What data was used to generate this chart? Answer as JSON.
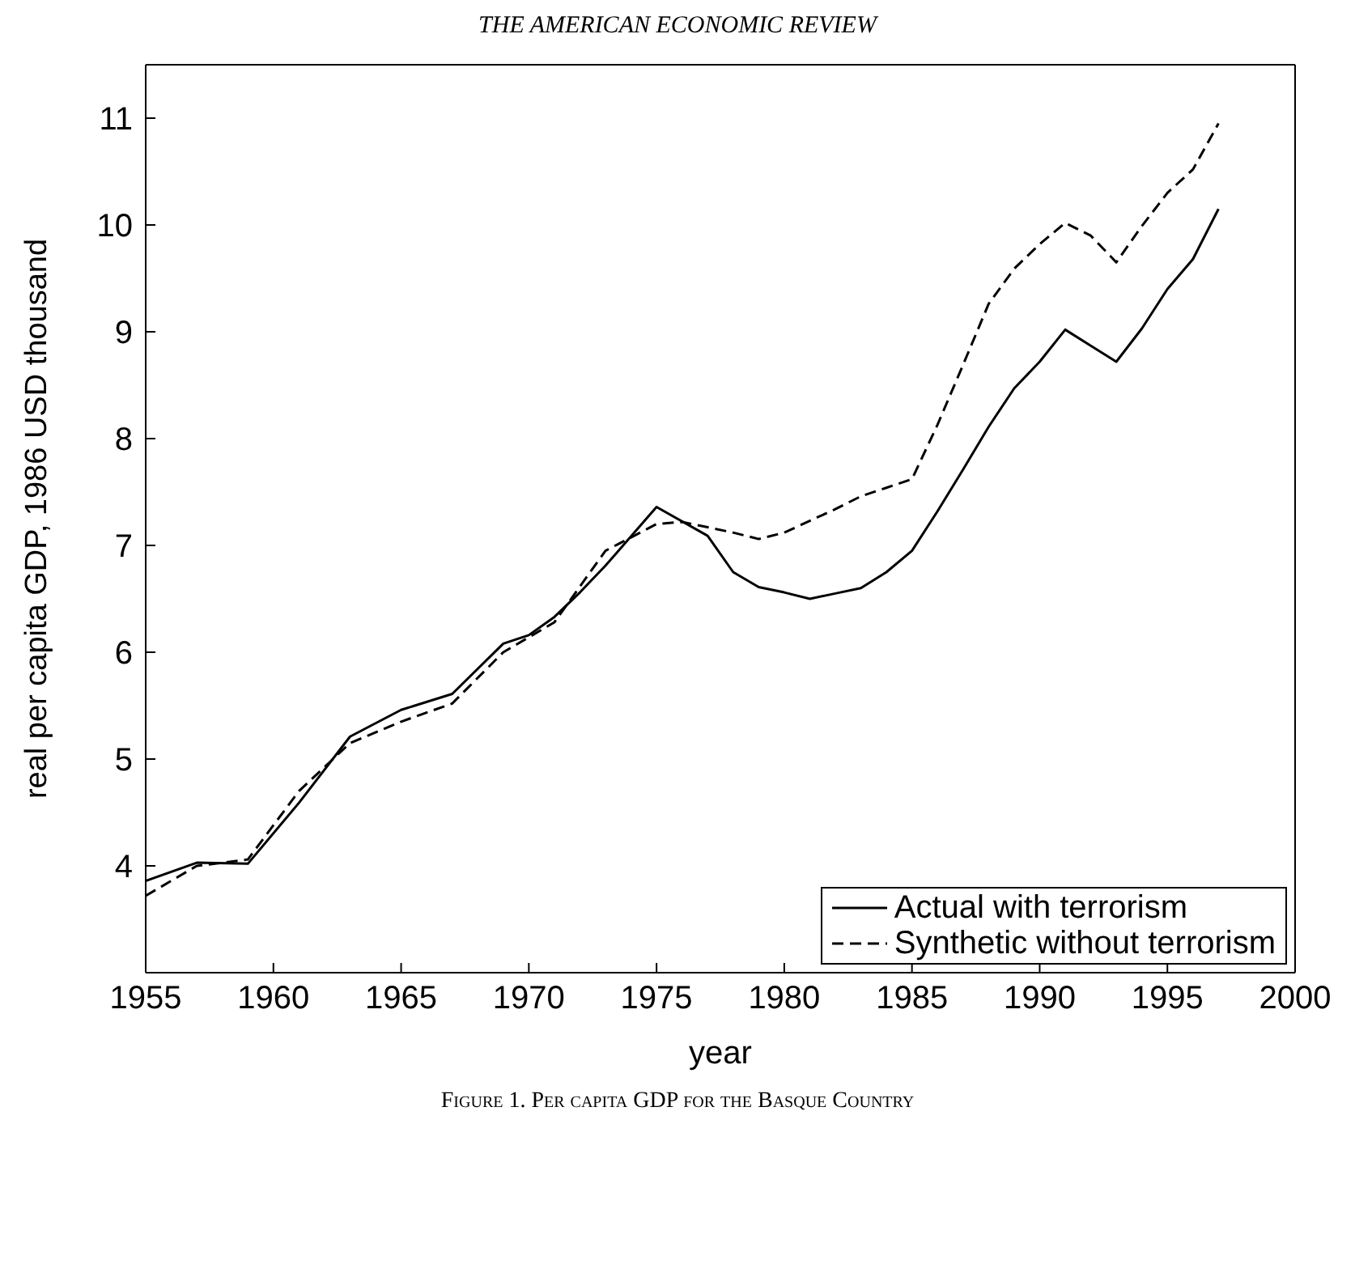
{
  "chart_data": {
    "type": "line",
    "title": "THE AMERICAN ECONOMIC REVIEW",
    "annotations": [
      "Figure 1. Per capita GDP for the Basque Country"
    ],
    "xlabel": "year",
    "ylabel": "real per capita GDP, 1986 USD thousand",
    "xlim": [
      1955,
      2000
    ],
    "xticks": [
      1955,
      1960,
      1965,
      1970,
      1975,
      1980,
      1985,
      1990,
      1995,
      2000
    ],
    "ylim": [
      3,
      11.5
    ],
    "yticks": [
      4,
      5,
      6,
      7,
      8,
      9,
      10,
      11
    ],
    "legend": "bottom right",
    "marker": "none",
    "series": [
      {
        "name": "Actual with terrorism",
        "color": "#000000",
        "line_style": "solid",
        "x": [
          1955,
          1957,
          1959,
          1961,
          1963,
          1965,
          1967,
          1969,
          1970,
          1971,
          1972,
          1973,
          1975,
          1977,
          1978,
          1979,
          1980,
          1981,
          1982,
          1983,
          1984,
          1985,
          1986,
          1987,
          1988,
          1989,
          1990,
          1991,
          1992,
          1993,
          1994,
          1995,
          1996,
          1997
        ],
        "values": [
          3.86,
          4.03,
          4.02,
          4.59,
          5.21,
          5.46,
          5.61,
          6.08,
          6.16,
          6.33,
          6.56,
          6.81,
          7.36,
          7.09,
          6.75,
          6.61,
          6.56,
          6.5,
          6.55,
          6.6,
          6.75,
          6.95,
          7.32,
          7.71,
          8.11,
          8.47,
          8.72,
          9.02,
          8.87,
          8.72,
          9.03,
          9.4,
          9.68,
          10.15
        ]
      },
      {
        "name": "Synthetic without terrorism",
        "color": "#000000",
        "line_style": "dashed",
        "x": [
          1955,
          1957,
          1959,
          1961,
          1963,
          1965,
          1967,
          1969,
          1971,
          1973,
          1975,
          1976,
          1977,
          1978,
          1979,
          1980,
          1981,
          1982,
          1983,
          1984,
          1985,
          1986,
          1987,
          1988,
          1989,
          1990,
          1991,
          1992,
          1993,
          1994,
          1995,
          1996,
          1997
        ],
        "values": [
          3.72,
          4.0,
          4.06,
          4.7,
          5.15,
          5.35,
          5.52,
          6.0,
          6.28,
          6.95,
          7.2,
          7.22,
          7.17,
          7.12,
          7.06,
          7.12,
          7.23,
          7.34,
          7.46,
          7.54,
          7.62,
          8.13,
          8.69,
          9.26,
          9.59,
          9.82,
          10.02,
          9.9,
          9.65,
          9.99,
          10.3,
          10.52,
          10.95
        ]
      }
    ]
  }
}
